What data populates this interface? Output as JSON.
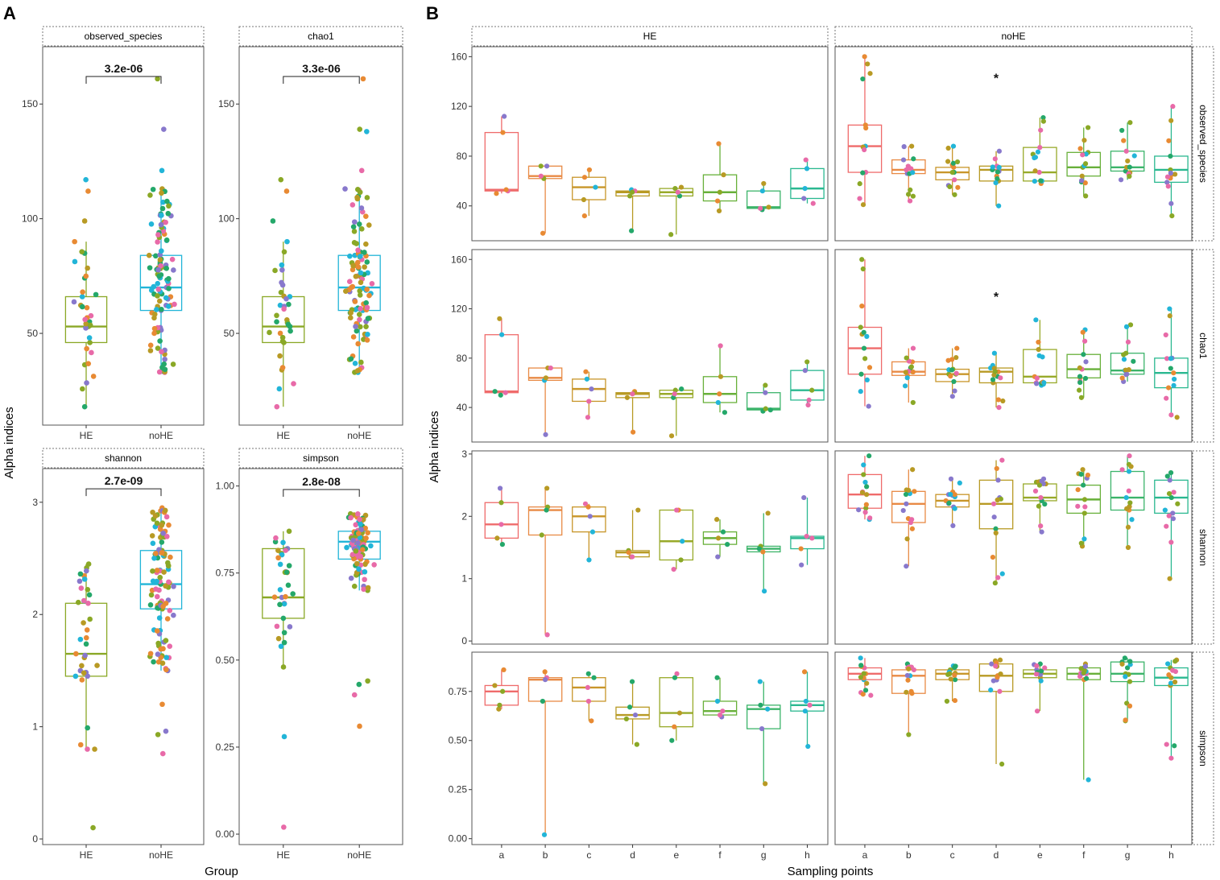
{
  "panel_labels": {
    "a": "A",
    "b": "B"
  },
  "colors": {
    "he": "#8aa826",
    "nohe": "#22b5d8",
    "points": [
      "#e86aa8",
      "#8878cc",
      "#24a86a",
      "#22b5d8",
      "#e88a33",
      "#b89a24",
      "#8aa826"
    ],
    "sampling": [
      "#ef6b6b",
      "#e88a45",
      "#c8962a",
      "#b89a24",
      "#98aa2a",
      "#68b03a",
      "#3cb46a",
      "#2ab890"
    ],
    "frame": "#555555",
    "strip_border": "#777777"
  },
  "chart_data": [
    {
      "type": "box",
      "panel": "A",
      "xlabel": "Group",
      "ylabel": "Alpha indices",
      "facets": [
        {
          "name": "observed_species",
          "categories": [
            "HE",
            "noHE"
          ],
          "ylim": [
            10,
            175
          ],
          "ticks": [
            50,
            100,
            150
          ],
          "boxes": [
            {
              "q1": 46,
              "median": 53,
              "q3": 66,
              "whislo": 18,
              "whishi": 90
            },
            {
              "q1": 60,
              "median": 70,
              "q3": 84,
              "whislo": 33,
              "whishi": 113
            }
          ],
          "pvalue": "3.2e-06",
          "bracket_y": 162,
          "n": [
            36,
            110
          ],
          "outliers": [
            [
              117,
              112,
              99
            ],
            [
              161,
              139,
              121
            ]
          ]
        },
        {
          "name": "chao1",
          "categories": [
            "HE",
            "noHE"
          ],
          "ylim": [
            10,
            175
          ],
          "ticks": [
            50,
            100,
            150
          ],
          "boxes": [
            {
              "q1": 46,
              "median": 53,
              "q3": 66,
              "whislo": 18,
              "whishi": 90
            },
            {
              "q1": 60,
              "median": 70,
              "q3": 84,
              "whislo": 33,
              "whishi": 113
            }
          ],
          "pvalue": "3.3e-06",
          "bracket_y": 162,
          "n": [
            36,
            110
          ],
          "outliers": [
            [
              117,
              112,
              99
            ],
            [
              161,
              139,
              138,
              121
            ]
          ]
        },
        {
          "name": "shannon",
          "categories": [
            "HE",
            "noHE"
          ],
          "ylim": [
            -0.05,
            3.3
          ],
          "ticks": [
            0,
            1,
            2,
            3
          ],
          "boxes": [
            {
              "q1": 1.45,
              "median": 1.65,
              "q3": 2.1,
              "whislo": 0.8,
              "whishi": 2.45
            },
            {
              "q1": 2.05,
              "median": 2.27,
              "q3": 2.57,
              "whislo": 1.5,
              "whishi": 2.95
            }
          ],
          "pvalue": "2.7e-09",
          "bracket_y": 3.12,
          "n": [
            36,
            110
          ],
          "outliers": [
            [
              0.1,
              0.8
            ],
            [
              1.2,
              0.93,
              0.96,
              0.76
            ]
          ]
        },
        {
          "name": "simpson",
          "categories": [
            "HE",
            "noHE"
          ],
          "ylim": [
            -0.03,
            1.05
          ],
          "ticks": [
            0.0,
            0.25,
            0.5,
            0.75,
            1.0
          ],
          "boxes": [
            {
              "q1": 0.62,
              "median": 0.68,
              "q3": 0.82,
              "whislo": 0.48,
              "whishi": 0.87
            },
            {
              "q1": 0.79,
              "median": 0.84,
              "q3": 0.87,
              "whislo": 0.7,
              "whishi": 0.92
            }
          ],
          "pvalue": "2.8e-08",
          "bracket_y": 0.99,
          "n": [
            36,
            110
          ],
          "outliers": [
            [
              0.28,
              0.02
            ],
            [
              0.43,
              0.4,
              0.31,
              0.44
            ]
          ]
        }
      ],
      "tick_labels": {
        "observed_species": [
          "50",
          "100",
          "150"
        ],
        "chao1": [
          "50",
          "100",
          "150"
        ],
        "shannon": [
          "0",
          "1",
          "2",
          "3"
        ],
        "simpson": [
          "0.00",
          "0.25",
          "0.50",
          "0.75",
          "1.00"
        ]
      }
    },
    {
      "type": "box",
      "panel": "B",
      "xlabel": "Sampling points",
      "ylabel": "Alpha indices",
      "columns": [
        "HE",
        "noHE"
      ],
      "categories": [
        "a",
        "b",
        "c",
        "d",
        "e",
        "f",
        "g",
        "h"
      ],
      "rows": [
        {
          "name": "observed_species",
          "ylim": [
            12,
            168
          ],
          "ticks": [
            40,
            80,
            120,
            160
          ],
          "tick_labels": [
            "40",
            "80",
            "120",
            "160"
          ],
          "HE": [
            {
              "q1": 52,
              "median": 53,
              "q3": 99,
              "whislo": 50,
              "whishi": 112,
              "n": 4
            },
            {
              "q1": 62,
              "median": 64,
              "q3": 72,
              "whislo": 18,
              "whishi": 72,
              "n": 5
            },
            {
              "q1": 45,
              "median": 55,
              "q3": 63,
              "whislo": 32,
              "whishi": 69,
              "n": 4
            },
            {
              "q1": 48,
              "median": 51,
              "q3": 52,
              "whislo": 20,
              "whishi": 53,
              "n": 5
            },
            {
              "q1": 48,
              "median": 51,
              "q3": 54,
              "whislo": 17,
              "whishi": 55,
              "n": 5
            },
            {
              "q1": 44,
              "median": 51,
              "q3": 65,
              "whislo": 36,
              "whishi": 90,
              "n": 4
            },
            {
              "q1": 38,
              "median": 39,
              "q3": 52,
              "whislo": 37,
              "whishi": 58,
              "n": 4
            },
            {
              "q1": 46,
              "median": 54,
              "q3": 70,
              "whislo": 42,
              "whishi": 77,
              "n": 4
            }
          ],
          "noHE": [
            {
              "q1": 67,
              "median": 88,
              "q3": 105,
              "whislo": 41,
              "whishi": 160,
              "n": 14
            },
            {
              "q1": 66,
              "median": 69,
              "q3": 77,
              "whislo": 44,
              "whishi": 88,
              "n": 14
            },
            {
              "q1": 61,
              "median": 67,
              "q3": 71,
              "whislo": 49,
              "whishi": 88,
              "n": 14
            },
            {
              "q1": 60,
              "median": 69,
              "q3": 72,
              "whislo": 40,
              "whishi": 84,
              "n": 14
            },
            {
              "q1": 60,
              "median": 67,
              "q3": 87,
              "whislo": 58,
              "whishi": 111,
              "n": 14
            },
            {
              "q1": 64,
              "median": 71,
              "q3": 83,
              "whislo": 48,
              "whishi": 103,
              "n": 14
            },
            {
              "q1": 68,
              "median": 71,
              "q3": 84,
              "whislo": 61,
              "whishi": 107,
              "n": 14
            },
            {
              "q1": 59,
              "median": 69,
              "q3": 80,
              "whislo": 32,
              "whishi": 120,
              "n": 14
            }
          ],
          "star": {
            "label": "*",
            "column": "noHE",
            "category": "d",
            "y": 143
          }
        },
        {
          "name": "chao1",
          "ylim": [
            12,
            168
          ],
          "ticks": [
            40,
            80,
            120,
            160
          ],
          "tick_labels": [
            "40",
            "80",
            "120",
            "160"
          ],
          "HE": [
            {
              "q1": 52,
              "median": 53,
              "q3": 99,
              "whislo": 50,
              "whishi": 112,
              "n": 4
            },
            {
              "q1": 62,
              "median": 64,
              "q3": 72,
              "whislo": 18,
              "whishi": 72,
              "n": 5
            },
            {
              "q1": 45,
              "median": 55,
              "q3": 63,
              "whislo": 32,
              "whishi": 69,
              "n": 4
            },
            {
              "q1": 48,
              "median": 51,
              "q3": 52,
              "whislo": 20,
              "whishi": 53,
              "n": 5
            },
            {
              "q1": 48,
              "median": 51,
              "q3": 54,
              "whislo": 17,
              "whishi": 55,
              "n": 5
            },
            {
              "q1": 44,
              "median": 51,
              "q3": 65,
              "whislo": 36,
              "whishi": 90,
              "n": 4
            },
            {
              "q1": 38,
              "median": 39,
              "q3": 52,
              "whislo": 37,
              "whishi": 58,
              "n": 4
            },
            {
              "q1": 46,
              "median": 54,
              "q3": 70,
              "whislo": 42,
              "whishi": 77,
              "n": 4
            }
          ],
          "noHE": [
            {
              "q1": 67,
              "median": 88,
              "q3": 105,
              "whislo": 41,
              "whishi": 160,
              "n": 14
            },
            {
              "q1": 66,
              "median": 69,
              "q3": 77,
              "whislo": 44,
              "whishi": 88,
              "n": 14
            },
            {
              "q1": 61,
              "median": 67,
              "q3": 71,
              "whislo": 49,
              "whishi": 88,
              "n": 14
            },
            {
              "q1": 60,
              "median": 69,
              "q3": 72,
              "whislo": 40,
              "whishi": 84,
              "n": 14
            },
            {
              "q1": 60,
              "median": 65,
              "q3": 87,
              "whislo": 58,
              "whishi": 111,
              "n": 14
            },
            {
              "q1": 64,
              "median": 71,
              "q3": 83,
              "whislo": 48,
              "whishi": 103,
              "n": 14
            },
            {
              "q1": 67,
              "median": 70,
              "q3": 84,
              "whislo": 61,
              "whishi": 107,
              "n": 14
            },
            {
              "q1": 56,
              "median": 68,
              "q3": 80,
              "whislo": 32,
              "whishi": 120,
              "n": 14
            }
          ],
          "star": {
            "label": "*",
            "column": "noHE",
            "category": "d",
            "y": 130
          }
        },
        {
          "name": "shannon",
          "ylim": [
            -0.05,
            3.05
          ],
          "ticks": [
            0,
            1,
            2,
            3
          ],
          "tick_labels": [
            "0",
            "1",
            "2",
            "3"
          ],
          "HE": [
            {
              "q1": 1.65,
              "median": 1.87,
              "q3": 2.22,
              "whislo": 1.55,
              "whishi": 2.45,
              "n": 4
            },
            {
              "q1": 1.7,
              "median": 2.1,
              "q3": 2.15,
              "whislo": 0.1,
              "whishi": 2.45,
              "n": 5
            },
            {
              "q1": 1.75,
              "median": 2.0,
              "q3": 2.15,
              "whislo": 1.3,
              "whishi": 2.2,
              "n": 4
            },
            {
              "q1": 1.35,
              "median": 1.42,
              "q3": 1.45,
              "whislo": 1.35,
              "whishi": 2.1,
              "n": 5
            },
            {
              "q1": 1.3,
              "median": 1.6,
              "q3": 2.1,
              "whislo": 1.15,
              "whishi": 2.1,
              "n": 5
            },
            {
              "q1": 1.55,
              "median": 1.65,
              "q3": 1.75,
              "whislo": 1.35,
              "whishi": 1.95,
              "n": 4
            },
            {
              "q1": 1.43,
              "median": 1.48,
              "q3": 1.52,
              "whislo": 0.8,
              "whishi": 2.05,
              "n": 4
            },
            {
              "q1": 1.48,
              "median": 1.65,
              "q3": 1.68,
              "whislo": 1.22,
              "whishi": 2.3,
              "n": 4
            }
          ],
          "noHE": [
            {
              "q1": 2.13,
              "median": 2.35,
              "q3": 2.67,
              "whislo": 1.95,
              "whishi": 2.97,
              "n": 14
            },
            {
              "q1": 1.9,
              "median": 2.2,
              "q3": 2.4,
              "whislo": 1.2,
              "whishi": 2.75,
              "n": 14
            },
            {
              "q1": 2.15,
              "median": 2.25,
              "q3": 2.35,
              "whislo": 1.85,
              "whishi": 2.6,
              "n": 14
            },
            {
              "q1": 1.8,
              "median": 2.2,
              "q3": 2.58,
              "whislo": 0.93,
              "whishi": 2.9,
              "n": 14
            },
            {
              "q1": 2.25,
              "median": 2.3,
              "q3": 2.52,
              "whislo": 1.75,
              "whishi": 2.6,
              "n": 14
            },
            {
              "q1": 2.05,
              "median": 2.27,
              "q3": 2.5,
              "whislo": 1.52,
              "whishi": 2.75,
              "n": 14
            },
            {
              "q1": 2.1,
              "median": 2.3,
              "q3": 2.72,
              "whislo": 1.5,
              "whishi": 2.97,
              "n": 14
            },
            {
              "q1": 2.05,
              "median": 2.3,
              "q3": 2.58,
              "whislo": 1.0,
              "whishi": 2.7,
              "n": 14
            }
          ]
        },
        {
          "name": "simpson",
          "ylim": [
            -0.03,
            0.95
          ],
          "ticks": [
            0.0,
            0.25,
            0.5,
            0.75
          ],
          "tick_labels": [
            "0.00",
            "0.25",
            "0.50",
            "0.75"
          ],
          "HE": [
            {
              "q1": 0.68,
              "median": 0.75,
              "q3": 0.78,
              "whislo": 0.66,
              "whishi": 0.86,
              "n": 4
            },
            {
              "q1": 0.7,
              "median": 0.81,
              "q3": 0.82,
              "whislo": 0.02,
              "whishi": 0.85,
              "n": 5
            },
            {
              "q1": 0.7,
              "median": 0.77,
              "q3": 0.82,
              "whislo": 0.6,
              "whishi": 0.84,
              "n": 4
            },
            {
              "q1": 0.61,
              "median": 0.63,
              "q3": 0.67,
              "whislo": 0.48,
              "whishi": 0.8,
              "n": 5
            },
            {
              "q1": 0.57,
              "median": 0.64,
              "q3": 0.82,
              "whislo": 0.5,
              "whishi": 0.84,
              "n": 5
            },
            {
              "q1": 0.63,
              "median": 0.65,
              "q3": 0.7,
              "whislo": 0.62,
              "whishi": 0.82,
              "n": 4
            },
            {
              "q1": 0.56,
              "median": 0.66,
              "q3": 0.68,
              "whislo": 0.28,
              "whishi": 0.8,
              "n": 4
            },
            {
              "q1": 0.65,
              "median": 0.68,
              "q3": 0.7,
              "whislo": 0.47,
              "whishi": 0.85,
              "n": 4
            }
          ],
          "noHE": [
            {
              "q1": 0.81,
              "median": 0.84,
              "q3": 0.87,
              "whislo": 0.73,
              "whishi": 0.92,
              "n": 14
            },
            {
              "q1": 0.74,
              "median": 0.83,
              "q3": 0.86,
              "whislo": 0.53,
              "whishi": 0.89,
              "n": 14
            },
            {
              "q1": 0.81,
              "median": 0.84,
              "q3": 0.86,
              "whislo": 0.7,
              "whishi": 0.88,
              "n": 14
            },
            {
              "q1": 0.75,
              "median": 0.83,
              "q3": 0.89,
              "whislo": 0.38,
              "whishi": 0.91,
              "n": 14
            },
            {
              "q1": 0.82,
              "median": 0.84,
              "q3": 0.86,
              "whislo": 0.65,
              "whishi": 0.89,
              "n": 14
            },
            {
              "q1": 0.81,
              "median": 0.84,
              "q3": 0.87,
              "whislo": 0.3,
              "whishi": 0.89,
              "n": 14
            },
            {
              "q1": 0.8,
              "median": 0.84,
              "q3": 0.9,
              "whislo": 0.6,
              "whishi": 0.92,
              "n": 14
            },
            {
              "q1": 0.78,
              "median": 0.82,
              "q3": 0.87,
              "whislo": 0.41,
              "whishi": 0.91,
              "n": 14
            }
          ]
        }
      ]
    }
  ]
}
